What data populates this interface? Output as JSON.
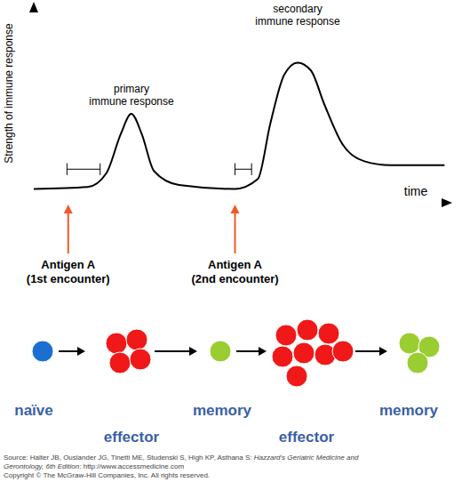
{
  "chart_data": {
    "type": "line",
    "x_label": "time",
    "y_label": "Strength of immune response",
    "x": [
      0,
      13,
      17.5,
      21,
      23.5,
      26,
      29,
      35,
      48.5,
      54,
      57,
      60.4,
      63.6,
      66.8,
      70,
      74.3,
      79.7,
      86,
      99
    ],
    "series": [
      {
        "name": "immune response",
        "color": "#000000",
        "values": [
          7,
          8,
          15,
          35,
          45,
          35,
          16,
          9,
          7,
          12,
          40,
          65,
          71,
          67,
          50,
          30,
          21,
          19,
          19
        ]
      }
    ],
    "xlim": [
      0,
      100
    ],
    "ylim": [
      0,
      100
    ],
    "xticks": [],
    "yticks": [],
    "grid": false,
    "tick_labels": false,
    "marker": "none",
    "lag_phases": [
      {
        "start": 8,
        "end": 16,
        "level": 17
      },
      {
        "start": 48.5,
        "end": 52.5,
        "level": 17
      }
    ]
  },
  "peak_labels": [
    "primary immune response",
    "secondary immune response"
  ],
  "antigens": [
    {
      "x": 8.3,
      "label": "Antigen A",
      "note": "(1st encounter)"
    },
    {
      "x": 48.5,
      "label": "Antigen A",
      "note": "(2nd encounter)"
    }
  ],
  "cells": [
    {
      "label": "naïve",
      "color": "#1a6fd1",
      "count": 1
    },
    {
      "label": "effector",
      "color": "#f01818",
      "count": 4
    },
    {
      "label": "memory",
      "color": "#9acd32",
      "count": 1
    },
    {
      "label": "effector",
      "color": "#f01818",
      "count": 8
    },
    {
      "label": "memory",
      "color": "#9acd32",
      "count": 3
    }
  ],
  "footer": {
    "source_prefix": "Source: Halter JB, Ouslander JG, Tinetti ME, Studenski S, High KP, Asthana S: ",
    "source_title": "Hazzard's Geriatric Medicine and Gerontology, 6th Edition",
    "source_suffix": ": http://www.accessmedicine.com",
    "copyright": "Copyright © The McGraw-Hill Companies, Inc. All rights reserved."
  }
}
